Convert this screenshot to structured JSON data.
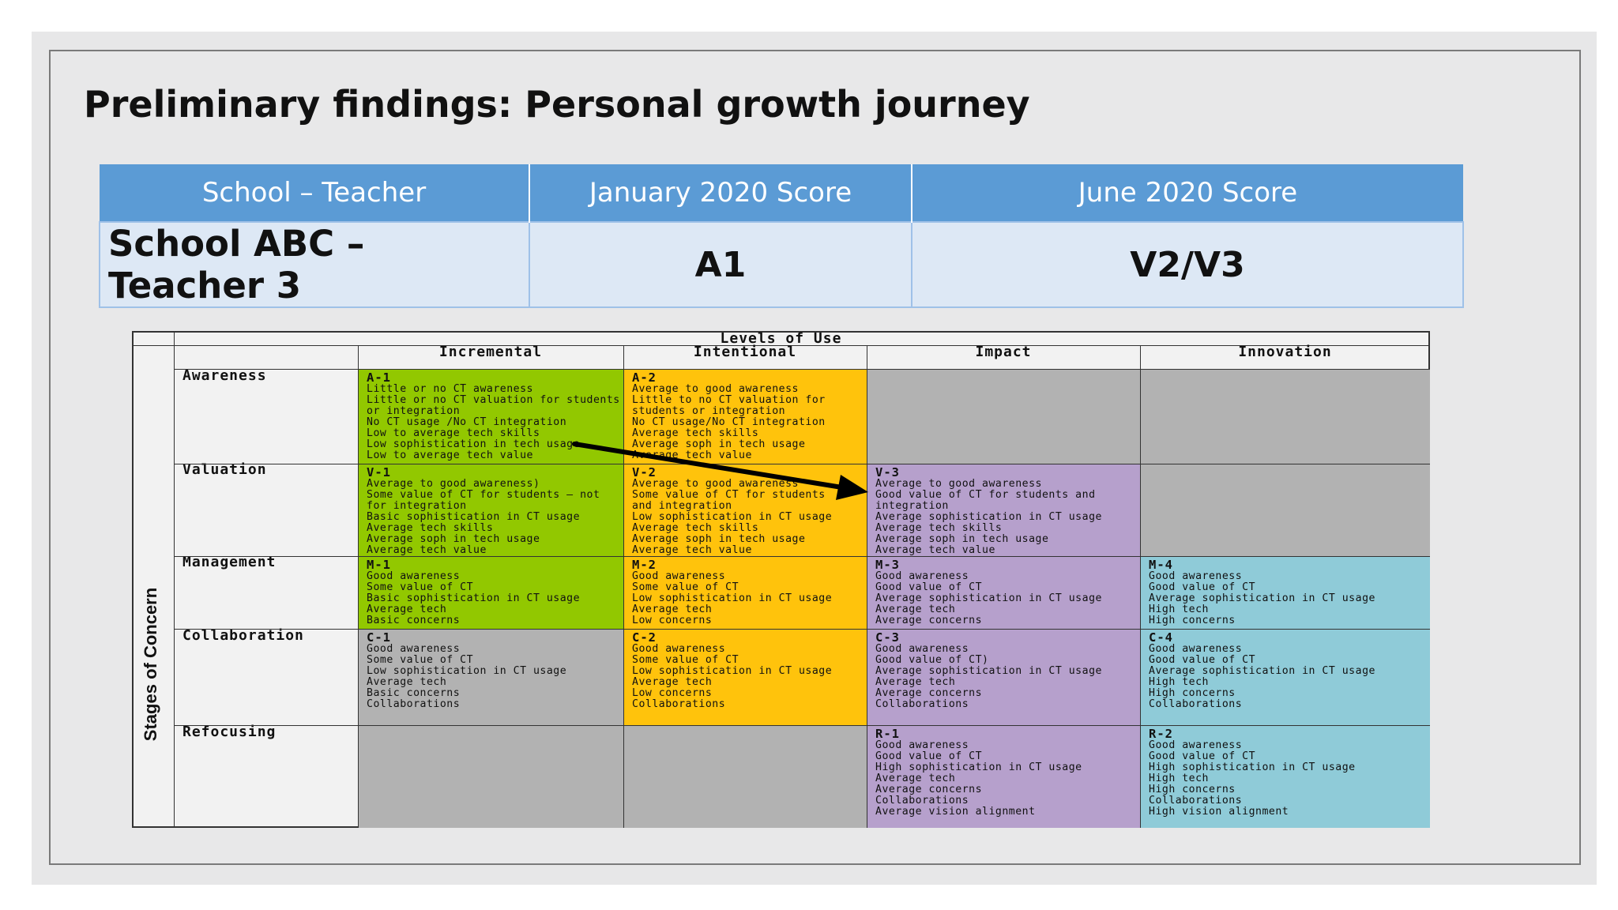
{
  "title": "Preliminary findings:  Personal growth journey",
  "score_table": {
    "headers": [
      "School – Teacher",
      "January 2020 Score",
      "June 2020 Score"
    ],
    "row": [
      "School ABC – Teacher 3",
      "A1",
      "V2/V3"
    ]
  },
  "matrix": {
    "levels_title": "Levels of Use",
    "stages_title": "Stages of Concern",
    "columns": [
      "Incremental",
      "Intentional",
      "Impact",
      "Innovation"
    ],
    "rows": [
      "Awareness",
      "Valuation",
      "Management",
      "Collaboration",
      "Refocusing"
    ],
    "cells": {
      "A1": {
        "code": "A-1",
        "lines": [
          "Little or no CT awareness",
          "Little or no CT valuation for students",
          "or integration",
          "No CT usage /No CT integration",
          "Low to average tech skills",
          "Low sophistication in tech usage",
          "Low to average tech value"
        ]
      },
      "A2": {
        "code": "A-2",
        "lines": [
          "Average to good awareness",
          "Little to no CT valuation for",
          "students or integration",
          "No CT usage/No CT integration",
          "Average tech skills",
          "Average soph in tech usage",
          "Average tech value"
        ]
      },
      "V1": {
        "code": "V-1",
        "lines": [
          "Average to good awareness)",
          "Some value of CT for students – not",
          "for integration",
          "Basic sophistication in CT usage",
          "Average tech skills",
          "Average soph in tech usage",
          "Average tech value"
        ]
      },
      "V2": {
        "code": "V-2",
        "lines": [
          "Average to good awareness",
          "Some value of CT for students",
          "and integration",
          "Low sophistication in CT usage",
          "Average tech skills",
          "Average soph in tech usage",
          "Average tech value"
        ]
      },
      "V3": {
        "code": "V-3",
        "lines": [
          "Average to good awareness",
          "Good value of CT for students and",
          "integration",
          "Average sophistication in CT usage",
          "Average tech skills",
          "Average soph in tech usage",
          "Average tech value"
        ]
      },
      "M1": {
        "code": "M-1",
        "lines": [
          "Good awareness",
          "Some value of CT",
          "Basic sophistication in CT usage",
          "Average tech",
          "Basic concerns"
        ]
      },
      "M2": {
        "code": "M-2",
        "lines": [
          "Good awareness",
          "Some value of CT",
          "Low sophistication in CT usage",
          "Average tech",
          "Low concerns"
        ]
      },
      "M3": {
        "code": "M-3",
        "lines": [
          "Good awareness",
          "Good value of CT",
          "Average sophistication in CT usage",
          "Average tech",
          "Average concerns"
        ]
      },
      "M4": {
        "code": "M-4",
        "lines": [
          "Good awareness",
          "Good value of CT",
          "Average sophistication in CT usage",
          "High tech",
          "High concerns"
        ]
      },
      "C1": {
        "code": "C-1",
        "lines": [
          "Good awareness",
          "Some value of CT",
          "Low sophistication in CT usage",
          "Average tech",
          "Basic concerns",
          "Collaborations"
        ]
      },
      "C2": {
        "code": "C-2",
        "lines": [
          "Good awareness",
          "Some value of CT",
          "Low sophistication in CT usage",
          "Average tech",
          "Low concerns",
          "Collaborations"
        ]
      },
      "C3": {
        "code": "C-3",
        "lines": [
          "Good awareness",
          "Good value of CT)",
          "Average sophistication in CT usage",
          "Average tech",
          "Average concerns",
          "Collaborations"
        ]
      },
      "C4": {
        "code": "C-4",
        "lines": [
          "Good awareness",
          "Good value of CT",
          "Average sophistication in CT usage",
          "High tech",
          "High concerns",
          "Collaborations"
        ]
      },
      "R1": {
        "code": "R-1",
        "lines": [
          "Good awareness",
          "Good value of CT",
          "High sophistication in CT usage",
          "Average tech",
          "Average concerns",
          "Collaborations",
          "Average vision alignment"
        ]
      },
      "R2": {
        "code": "R-2",
        "lines": [
          "Good awareness",
          "Good value of CT",
          "High sophistication in CT usage",
          "High tech",
          "High concerns",
          "Collaborations",
          "High vision alignment"
        ]
      }
    },
    "colors": {
      "green": "#92c800",
      "orange": "#ffc30c",
      "gray": "#b2b2b2",
      "purple": "#b6a0cc",
      "teal": "#8fcbd8"
    }
  }
}
